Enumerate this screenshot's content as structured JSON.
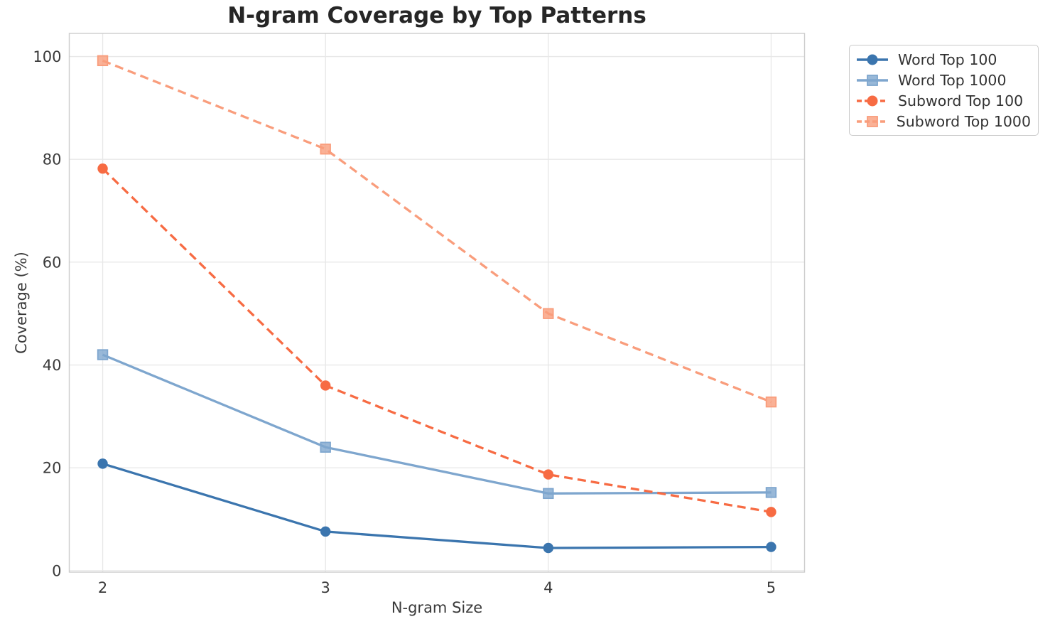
{
  "title": "N-gram Coverage by Top Patterns",
  "chart_data": {
    "type": "line",
    "title": "N-gram Coverage by Top Patterns",
    "xlabel": "N-gram Size",
    "ylabel": "Coverage (%)",
    "x": [
      2,
      3,
      4,
      5
    ],
    "xticks": [
      2,
      3,
      4,
      5
    ],
    "yticks": [
      0,
      20,
      40,
      60,
      80,
      100
    ],
    "xlim": [
      1.85,
      5.15
    ],
    "ylim": [
      -0.3,
      104.5
    ],
    "grid": true,
    "legend_position": "outside-top-right",
    "series": [
      {
        "name": "Word Top 100",
        "values": [
          20.8,
          7.6,
          4.4,
          4.6
        ],
        "color": "#3B75AE",
        "linestyle": "solid",
        "marker": "circle"
      },
      {
        "name": "Word Top 1000",
        "values": [
          42,
          24,
          15,
          15.2
        ],
        "color": "#7EA6CE",
        "linestyle": "solid",
        "marker": "square"
      },
      {
        "name": "Subword Top 100",
        "values": [
          78.2,
          36,
          18.7,
          11.4
        ],
        "color": "#F76B43",
        "linestyle": "dashed",
        "marker": "circle"
      },
      {
        "name": "Subword Top 1000",
        "values": [
          99.2,
          82,
          50,
          32.8
        ],
        "color": "#F99D7C",
        "linestyle": "dashed",
        "marker": "square"
      }
    ],
    "colors": {
      "grid": "#e8e8e8",
      "spine": "#cccccc",
      "tick_text": "#3a3a3a",
      "title_text": "#262626"
    }
  }
}
